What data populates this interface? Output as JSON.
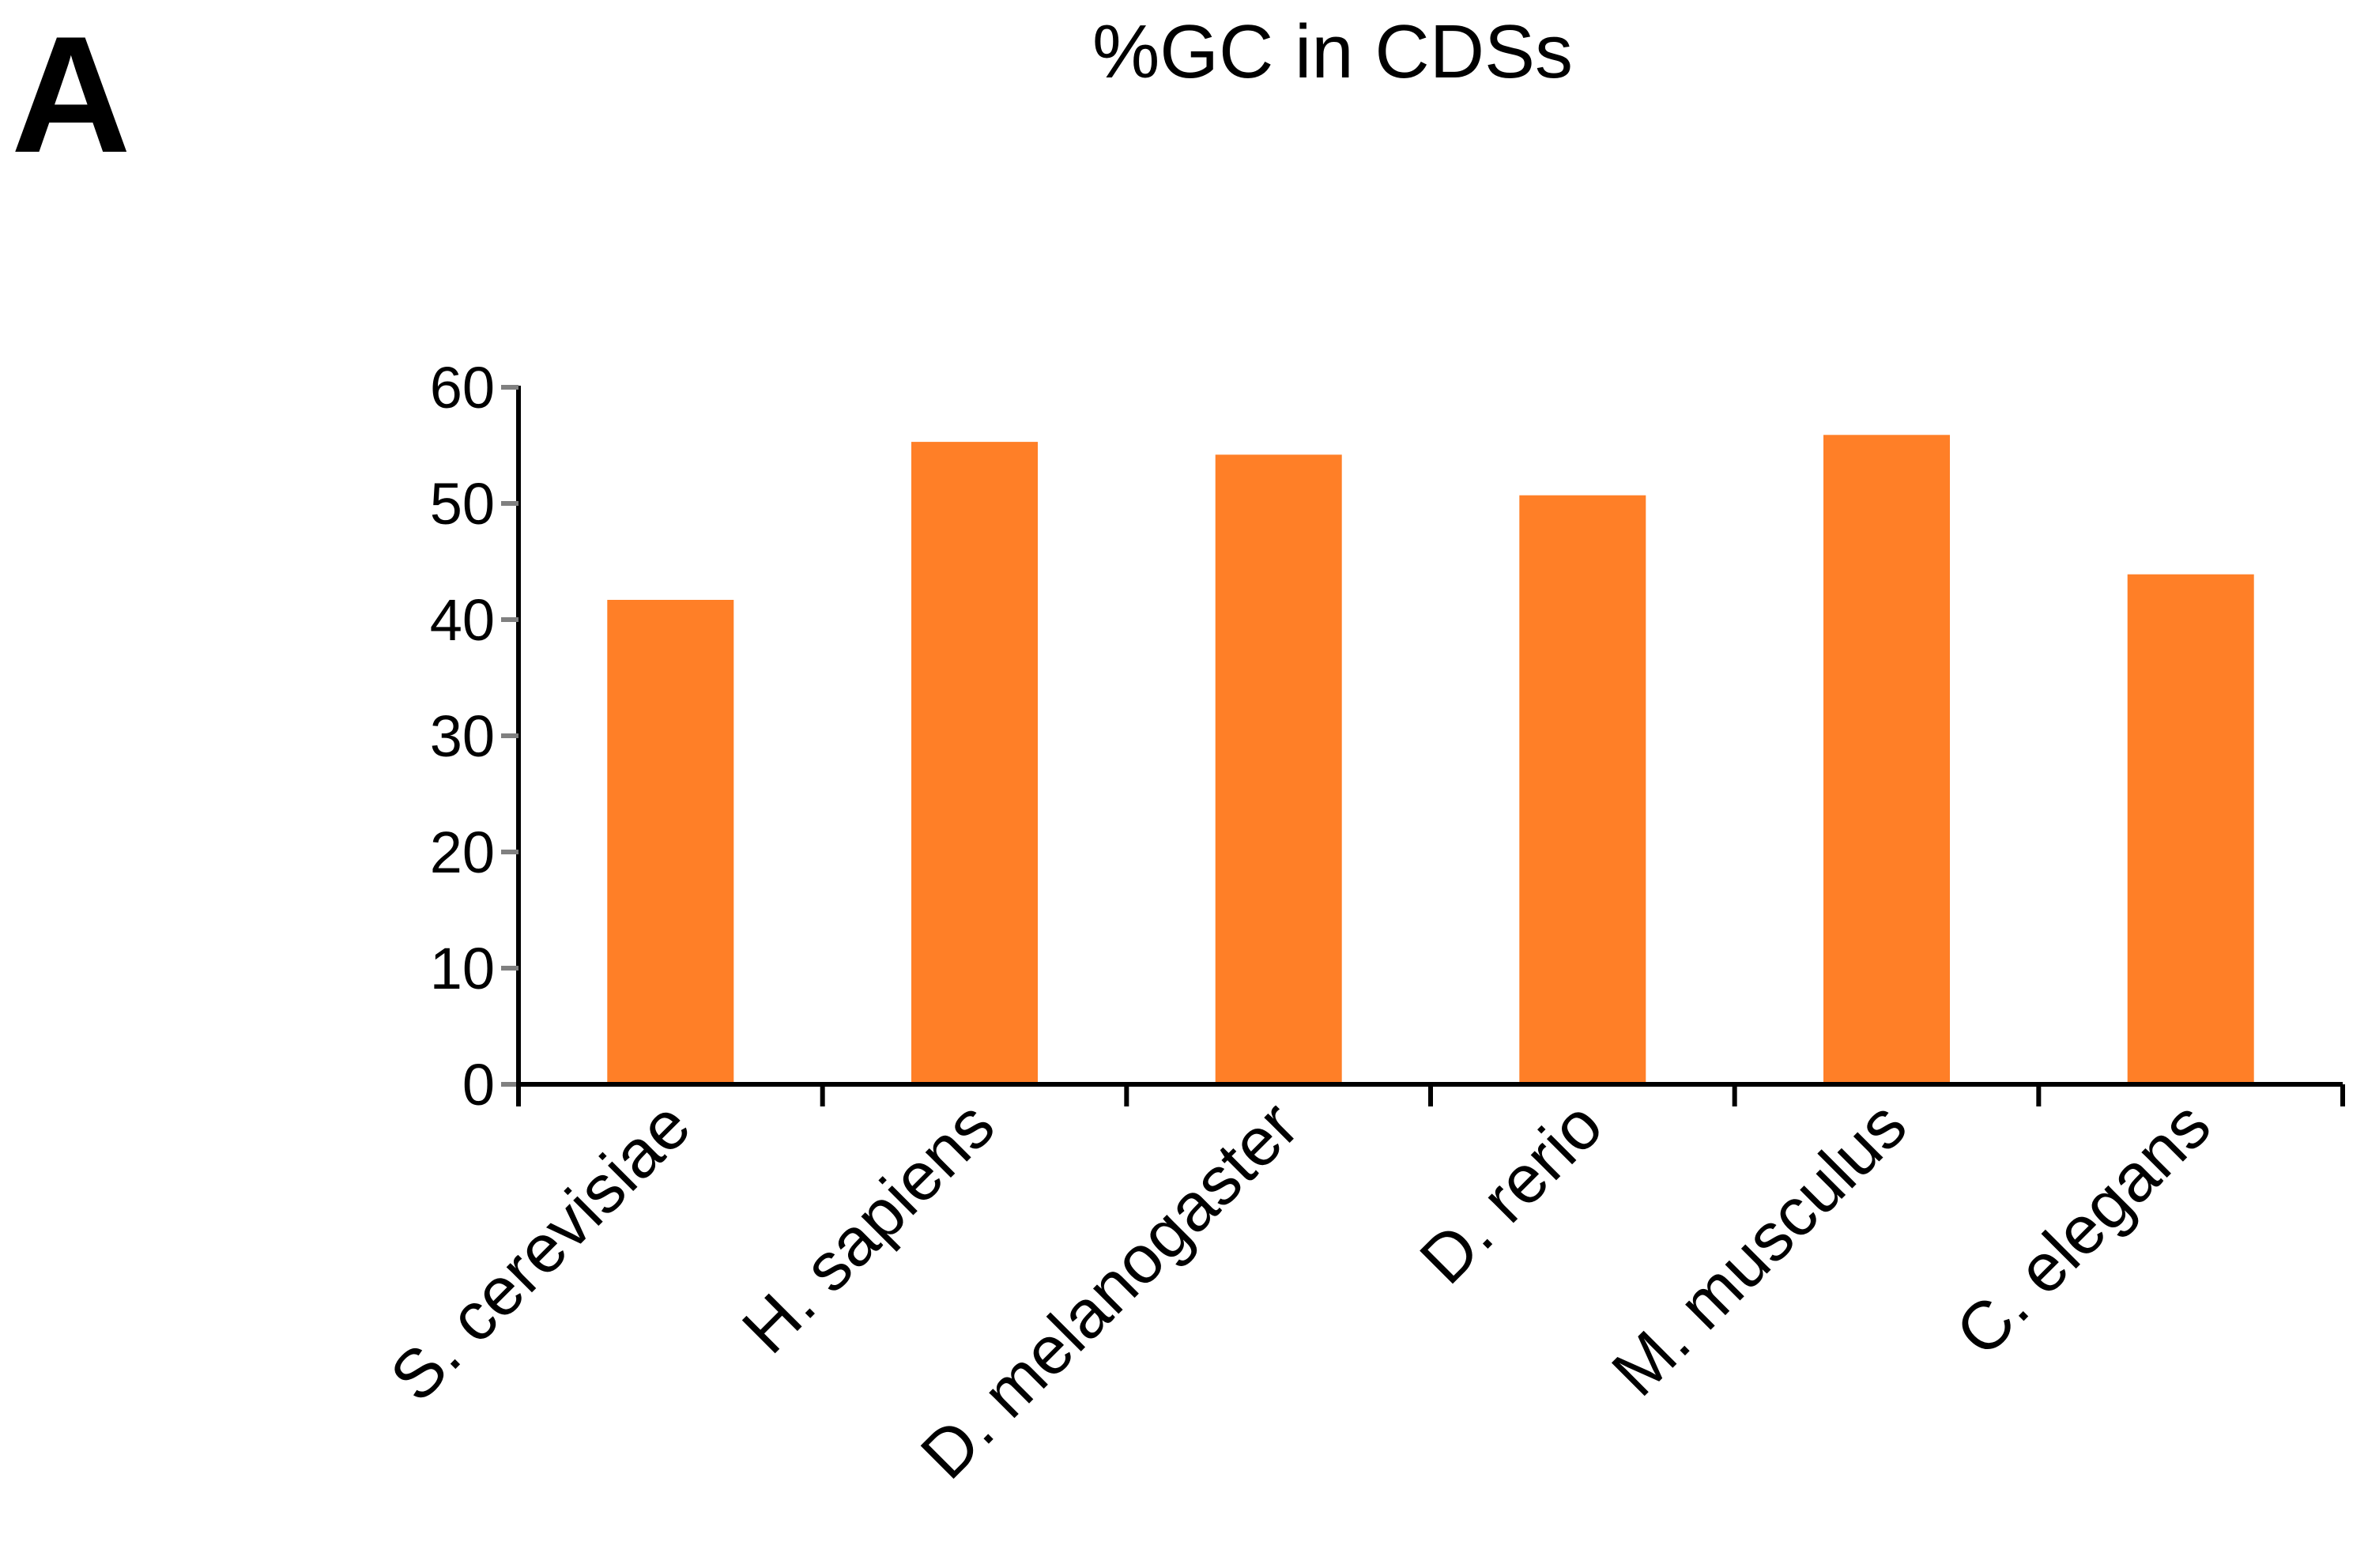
{
  "panel_label": "A",
  "chart_data": {
    "type": "bar",
    "title": "%GC in CDSs",
    "xlabel": "",
    "ylabel": "",
    "categories": [
      "S. cerevisiae",
      "H. sapiens",
      "D. melanogaster",
      "D. rerio",
      "M. musculus",
      "C. elegans"
    ],
    "values": [
      41.7,
      55.3,
      54.2,
      50.7,
      55.9,
      43.9
    ],
    "ylim": [
      0,
      60
    ],
    "yticks": [
      "0",
      "10",
      "20",
      "30",
      "40",
      "50",
      "60"
    ],
    "grid": false,
    "legend": "none",
    "colors": {
      "bar": "#FF7F27",
      "axis": "#000000",
      "tick": "#808080"
    }
  }
}
